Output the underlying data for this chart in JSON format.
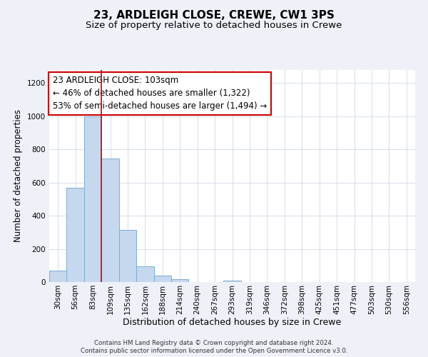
{
  "title1": "23, ARDLEIGH CLOSE, CREWE, CW1 3PS",
  "title2": "Size of property relative to detached houses in Crewe",
  "xlabel": "Distribution of detached houses by size in Crewe",
  "ylabel": "Number of detached properties",
  "bin_labels": [
    "30sqm",
    "56sqm",
    "83sqm",
    "109sqm",
    "135sqm",
    "162sqm",
    "188sqm",
    "214sqm",
    "240sqm",
    "267sqm",
    "293sqm",
    "319sqm",
    "346sqm",
    "372sqm",
    "398sqm",
    "425sqm",
    "451sqm",
    "477sqm",
    "503sqm",
    "530sqm",
    "556sqm"
  ],
  "bar_heights": [
    68,
    570,
    1000,
    745,
    315,
    95,
    40,
    18,
    0,
    0,
    10,
    0,
    0,
    0,
    0,
    0,
    0,
    0,
    0,
    0,
    0
  ],
  "bar_color": "#c5d8ee",
  "bar_edgecolor": "#7bafd4",
  "vline_color": "#cc0000",
  "vline_position": 2.5,
  "annotation_text": "23 ARDLEIGH CLOSE: 103sqm\n← 46% of detached houses are smaller (1,322)\n53% of semi-detached houses are larger (1,494) →",
  "annotation_box_facecolor": "#ffffff",
  "annotation_box_edgecolor": "#cc0000",
  "annotation_fontsize": 8.5,
  "footer_text": "Contains HM Land Registry data © Crown copyright and database right 2024.\nContains public sector information licensed under the Open Government Licence v3.0.",
  "ylim": [
    0,
    1280
  ],
  "yticks": [
    0,
    200,
    400,
    600,
    800,
    1000,
    1200
  ],
  "background_color": "#eef2f8",
  "plot_background": "#ffffff",
  "grid_color": "#d0d8e8",
  "title1_fontsize": 11,
  "title2_fontsize": 9.5,
  "xlabel_fontsize": 9,
  "ylabel_fontsize": 8.5,
  "tick_fontsize": 7.5
}
